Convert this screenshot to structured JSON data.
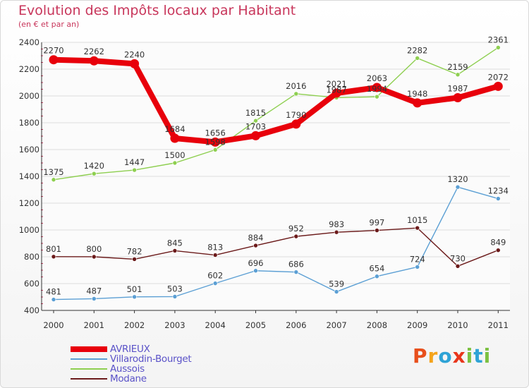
{
  "title": "Evolution des Impôts locaux par Habitant",
  "subtitle": "(en € et par an)",
  "logo": {
    "text": "Proxiti",
    "colors": [
      "#e84f1c",
      "#f4a41c",
      "#2ea3d6",
      "#e8361c",
      "#7cc142",
      "#2ea3d6",
      "#7cc142"
    ]
  },
  "chart_data": {
    "type": "line",
    "title": "Evolution des Impôts locaux par Habitant",
    "subtitle": "(en € et par an)",
    "xlabel": "",
    "ylabel": "",
    "categories": [
      "2000",
      "2001",
      "2002",
      "2003",
      "2004",
      "2005",
      "2006",
      "2007",
      "2008",
      "2009",
      "2010",
      "2011"
    ],
    "ylim": [
      400,
      2400
    ],
    "yticks": [
      400,
      600,
      800,
      1000,
      1200,
      1400,
      1600,
      1800,
      2000,
      2200,
      2400
    ],
    "grid": "horizontal",
    "legend": "bottom-left",
    "series": [
      {
        "name": "AVRIEUX",
        "color": "#e8000b",
        "values": [
          2270,
          2262,
          2240,
          1684,
          1656,
          1703,
          1790,
          2021,
          2063,
          1948,
          1987,
          2072
        ]
      },
      {
        "name": "Villarodin-Bourget",
        "color": "#5b9fd4",
        "values": [
          481,
          487,
          501,
          503,
          602,
          696,
          686,
          539,
          654,
          724,
          1320,
          1234
        ]
      },
      {
        "name": "Aussois",
        "color": "#8ecf50",
        "values": [
          1375,
          1420,
          1447,
          1500,
          1598,
          1815,
          2016,
          1987,
          1994,
          2282,
          2159,
          2361
        ]
      },
      {
        "name": "Modane",
        "color": "#6b1a1a",
        "values": [
          801,
          800,
          782,
          845,
          813,
          884,
          952,
          983,
          997,
          1015,
          730,
          849
        ]
      }
    ]
  }
}
